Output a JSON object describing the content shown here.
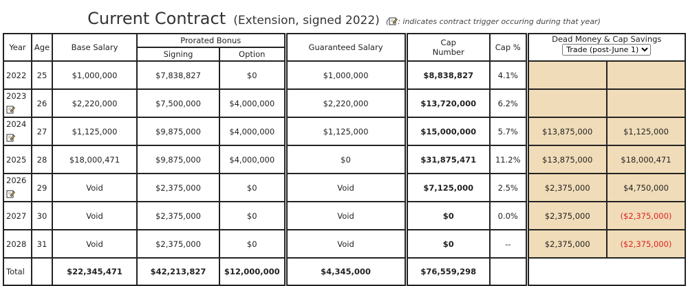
{
  "title": {
    "main": "Current Contract",
    "sub": "(Extension, signed 2022)",
    "note_paren_open": "(",
    "note": ": indicates contract trigger occuring during that year)"
  },
  "headers": {
    "year": "Year",
    "age": "Age",
    "base_salary": "Base Salary",
    "prorated_bonus": "Prorated Bonus",
    "signing": "Signing",
    "option": "Option",
    "guaranteed_salary": "Guaranteed Salary",
    "cap_number_l1": "Cap",
    "cap_number_l2": "Number",
    "cap_pct": "Cap %",
    "dead_money": "Dead Money & Cap Savings",
    "trade_select_value": "Trade (post-June 1)"
  },
  "rows": [
    {
      "year": "2022",
      "trigger": false,
      "age": "25",
      "base": "$1,000,000",
      "signing": "$7,838,827",
      "option": "$0",
      "guaranteed": "$1,000,000",
      "cap": "$8,838,827",
      "pct": "4.1%",
      "dead": "",
      "savings": "",
      "savings_negative": false
    },
    {
      "year": "2023",
      "trigger": true,
      "age": "26",
      "base": "$2,220,000",
      "signing": "$7,500,000",
      "option": "$4,000,000",
      "guaranteed": "$2,220,000",
      "cap": "$13,720,000",
      "pct": "6.2%",
      "dead": "",
      "savings": "",
      "savings_negative": false
    },
    {
      "year": "2024",
      "trigger": true,
      "age": "27",
      "base": "$1,125,000",
      "signing": "$9,875,000",
      "option": "$4,000,000",
      "guaranteed": "$1,125,000",
      "cap": "$15,000,000",
      "pct": "5.7%",
      "dead": "$13,875,000",
      "savings": "$1,125,000",
      "savings_negative": false
    },
    {
      "year": "2025",
      "trigger": false,
      "age": "28",
      "base": "$18,000,471",
      "signing": "$9,875,000",
      "option": "$4,000,000",
      "guaranteed": "$0",
      "cap": "$31,875,471",
      "pct": "11.2%",
      "dead": "$13,875,000",
      "savings": "$18,000,471",
      "savings_negative": false
    },
    {
      "year": "2026",
      "trigger": true,
      "age": "29",
      "base": "Void",
      "signing": "$2,375,000",
      "option": "$0",
      "guaranteed": "Void",
      "cap": "$7,125,000",
      "pct": "2.5%",
      "dead": "$2,375,000",
      "savings": "$4,750,000",
      "savings_negative": false
    },
    {
      "year": "2027",
      "trigger": false,
      "age": "30",
      "base": "Void",
      "signing": "$2,375,000",
      "option": "$0",
      "guaranteed": "Void",
      "cap": "$0",
      "pct": "0.0%",
      "dead": "$2,375,000",
      "savings": "($2,375,000)",
      "savings_negative": true
    },
    {
      "year": "2028",
      "trigger": false,
      "age": "31",
      "base": "Void",
      "signing": "$2,375,000",
      "option": "$0",
      "guaranteed": "Void",
      "cap": "$0",
      "pct": "--",
      "dead": "$2,375,000",
      "savings": "($2,375,000)",
      "savings_negative": true
    }
  ],
  "total": {
    "label": "Total",
    "base": "$22,345,471",
    "signing": "$42,213,827",
    "option": "$12,000,000",
    "guaranteed": "$4,345,000",
    "cap": "$76,559,298"
  },
  "colors": {
    "dead_money_bg": "#f0dcb8",
    "negative": "#dd2222"
  },
  "icons": {
    "trigger": "pencil-note-icon"
  }
}
